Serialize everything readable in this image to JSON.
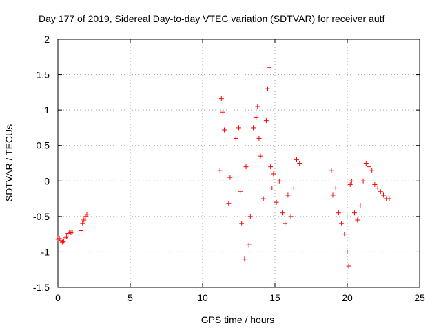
{
  "chart_data": {
    "type": "scatter",
    "title": "Day 177 of 2019, Sidereal Day-to-day VTEC variation (SDTVAR) for receiver autf",
    "xlabel": "GPS time / hours",
    "ylabel": "SDTVAR / TECUs",
    "xlim": [
      0,
      25
    ],
    "ylim": [
      -1.5,
      2
    ],
    "xticks": [
      0,
      5,
      10,
      15,
      20,
      25
    ],
    "yticks": [
      -1.5,
      -1,
      -0.5,
      0,
      0.5,
      1,
      1.5,
      2
    ],
    "xtick_labels": [
      "0",
      "5",
      "10",
      "15",
      "20",
      "25"
    ],
    "ytick_labels": [
      "-1.5",
      "-1",
      "-0.5",
      "0",
      "0.5",
      "1",
      "1.5",
      "2"
    ],
    "grid": true,
    "marker": "+",
    "color": "#ff0000",
    "series": [
      {
        "name": "SDTVAR",
        "x": [
          0.0,
          0.1,
          0.2,
          0.3,
          0.4,
          0.5,
          0.6,
          0.7,
          0.8,
          0.9,
          1.0,
          1.6,
          1.7,
          1.8,
          1.9,
          2.0,
          11.2,
          11.3,
          11.4,
          11.5,
          11.8,
          11.9,
          12.3,
          12.5,
          12.6,
          12.7,
          12.9,
          13.0,
          13.2,
          13.3,
          13.5,
          13.7,
          13.8,
          13.9,
          14.0,
          14.2,
          14.4,
          14.5,
          14.6,
          14.7,
          14.8,
          14.9,
          15.1,
          15.3,
          15.5,
          15.7,
          15.9,
          16.1,
          16.3,
          16.5,
          16.7,
          18.9,
          19.0,
          19.2,
          19.4,
          19.6,
          19.8,
          20.0,
          20.1,
          20.2,
          20.3,
          20.5,
          20.7,
          20.9,
          21.1,
          21.3,
          21.5,
          21.7,
          21.9,
          22.1,
          22.3,
          22.5,
          22.7,
          22.9
        ],
        "y": [
          -0.82,
          -0.81,
          -0.84,
          -0.86,
          -0.85,
          -0.8,
          -0.78,
          -0.74,
          -0.72,
          -0.73,
          -0.72,
          -0.7,
          -0.6,
          -0.55,
          -0.5,
          -0.47,
          0.15,
          1.16,
          0.97,
          0.72,
          -0.32,
          0.05,
          0.6,
          0.75,
          -0.15,
          -0.6,
          -1.1,
          0.2,
          -0.9,
          -0.5,
          0.75,
          0.9,
          1.05,
          0.6,
          0.35,
          -0.25,
          0.85,
          1.3,
          1.6,
          0.2,
          -0.1,
          0.1,
          -0.3,
          0.0,
          -0.45,
          -0.6,
          -0.2,
          -0.5,
          -0.1,
          0.3,
          0.25,
          0.15,
          -0.2,
          -0.1,
          -0.45,
          -0.6,
          -0.75,
          -1.0,
          -1.2,
          -0.05,
          0.0,
          -0.45,
          -0.55,
          -0.35,
          0.0,
          0.25,
          0.2,
          0.15,
          -0.05,
          -0.1,
          -0.15,
          -0.2,
          -0.25,
          -0.25
        ]
      }
    ]
  }
}
